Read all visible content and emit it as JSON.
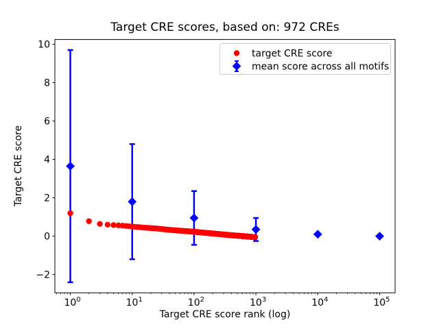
{
  "figure": {
    "background": "#ffffff"
  },
  "chart_data": {
    "type": "scatter",
    "title": "Target CRE scores, based on: 972 CREs",
    "xlabel": "Target CRE score rank (log)",
    "ylabel": "Target CRE score",
    "x_scale": "log",
    "xlim_log10": [
      -0.25,
      5.25
    ],
    "ylim": [
      -2.95,
      10.25
    ],
    "x_ticks": [
      1,
      10,
      100,
      1000,
      10000,
      100000
    ],
    "y_ticks": [
      -2,
      0,
      2,
      4,
      6,
      8,
      10
    ],
    "grid": false,
    "legend": {
      "position": "upper right",
      "border_color": "#cccccc",
      "entries": [
        {
          "label": "target CRE score",
          "marker": "circle",
          "color": "#ff0000"
        },
        {
          "label": "mean score across all motifs",
          "marker": "diamond-errorbar",
          "color": "#0000ff"
        }
      ]
    },
    "series": [
      {
        "name": "mean score across all motifs",
        "marker": "diamond",
        "color": "#0000ff",
        "ranks": [
          1,
          10,
          100,
          1000,
          10000,
          100000
        ],
        "means": [
          3.65,
          1.8,
          0.95,
          0.35,
          0.1,
          0.0
        ],
        "errors": [
          6.05,
          3.0,
          1.4,
          0.6,
          0.0,
          0.0
        ]
      },
      {
        "name": "target CRE score",
        "marker": "circle",
        "color": "#ff0000",
        "n_points": 972,
        "description": "972 sorted CRE scores vs rank; values interpolated from trend control points [log10(rank), score]",
        "trend_log10rank_value": [
          [
            0.0,
            1.2
          ],
          [
            0.301,
            0.78
          ],
          [
            0.477,
            0.64
          ],
          [
            0.602,
            0.6
          ],
          [
            0.699,
            0.58
          ],
          [
            0.845,
            0.55
          ],
          [
            1.0,
            0.5
          ],
          [
            1.18,
            0.45
          ],
          [
            1.4,
            0.4
          ],
          [
            1.6,
            0.33
          ],
          [
            1.8,
            0.28
          ],
          [
            2.0,
            0.23
          ],
          [
            2.2,
            0.17
          ],
          [
            2.4,
            0.11
          ],
          [
            2.6,
            0.05
          ],
          [
            2.8,
            0.0
          ],
          [
            2.988,
            -0.05
          ]
        ]
      }
    ]
  }
}
